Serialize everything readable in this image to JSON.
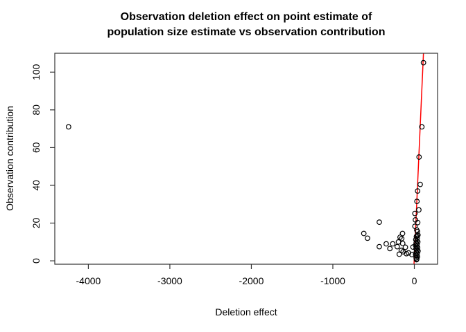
{
  "chart_data": {
    "type": "scatter",
    "title_line1": "Observation deletion effect on point estimate of",
    "title_line2": "population size estimate vs observation contribution",
    "xlabel": "Deletion effect",
    "ylabel": "Observation contribution",
    "xlim": [
      -4412,
      285
    ],
    "ylim": [
      -1.8,
      110
    ],
    "x_ticks": [
      -4000,
      -3000,
      -2000,
      -1000,
      0
    ],
    "y_ticks": [
      0,
      20,
      40,
      60,
      80,
      100
    ],
    "grid": false,
    "legend": "none",
    "point_style": {
      "shape": "open-circle",
      "color": "#000000",
      "radius": 3.3
    },
    "fit_line": {
      "color": "#ff0000",
      "x1": -4,
      "y1": -1.8,
      "x2": 112,
      "y2": 110
    },
    "points": [
      [
        -4243,
        71
      ],
      [
        -620,
        14.5
      ],
      [
        -575,
        12
      ],
      [
        -430,
        20.5
      ],
      [
        -430,
        7.5
      ],
      [
        -345,
        9
      ],
      [
        -300,
        6.5
      ],
      [
        -265,
        9
      ],
      [
        -210,
        7.5
      ],
      [
        -195,
        10
      ],
      [
        -175,
        12.5
      ],
      [
        -185,
        3.5
      ],
      [
        -160,
        5.5
      ],
      [
        -145,
        14.5
      ],
      [
        -155,
        11.8
      ],
      [
        -143,
        9.2
      ],
      [
        -138,
        4.8
      ],
      [
        -110,
        7.2
      ],
      [
        -98,
        3.8
      ],
      [
        -72,
        4.2
      ],
      [
        -30,
        3.3
      ],
      [
        -17,
        7.3
      ],
      [
        112,
        105
      ],
      [
        92,
        71
      ],
      [
        58,
        55
      ],
      [
        72,
        40.5
      ],
      [
        40,
        37
      ],
      [
        32,
        31.5
      ],
      [
        55,
        27
      ],
      [
        7,
        25.1
      ],
      [
        13,
        21.7
      ],
      [
        41,
        20.3
      ],
      [
        7,
        18.3
      ],
      [
        30,
        16.3
      ],
      [
        38,
        15.5
      ],
      [
        44,
        13.7
      ],
      [
        33,
        13.3
      ],
      [
        25,
        12.8
      ],
      [
        35,
        12
      ],
      [
        18,
        11.2
      ],
      [
        30,
        10.6
      ],
      [
        42,
        10
      ],
      [
        22,
        9.4
      ],
      [
        34,
        8.8
      ],
      [
        15,
        8.2
      ],
      [
        28,
        7.6
      ],
      [
        40,
        7
      ],
      [
        20,
        6.4
      ],
      [
        32,
        5.8
      ],
      [
        45,
        5.2
      ],
      [
        24,
        4.6
      ],
      [
        36,
        4
      ],
      [
        16,
        3.4
      ],
      [
        28,
        2.8
      ],
      [
        38,
        2.2
      ],
      [
        22,
        1.6
      ],
      [
        30,
        1
      ],
      [
        26,
        0.6
      ]
    ]
  },
  "colors": {
    "background": "#ffffff",
    "box_border": "#333333",
    "tick": "#333333",
    "text": "#000000",
    "point_stroke": "#000000",
    "fit_line": "#ff0000"
  }
}
